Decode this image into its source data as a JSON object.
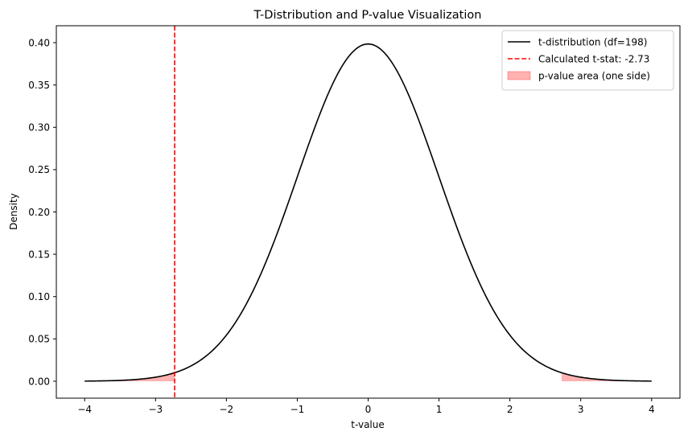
{
  "chart_data": {
    "type": "line",
    "title": "T-Distribution and P-value Visualization",
    "xlabel": "t-value",
    "ylabel": "Density",
    "xlim": [
      -4.4,
      4.4
    ],
    "ylim": [
      -0.02,
      0.42
    ],
    "xticks": [
      -4,
      -3,
      -2,
      -1,
      0,
      1,
      2,
      3,
      4
    ],
    "xtick_labels": [
      "−4",
      "−3",
      "−2",
      "−1",
      "0",
      "1",
      "2",
      "3",
      "4"
    ],
    "yticks": [
      0.0,
      0.05,
      0.1,
      0.15,
      0.2,
      0.25,
      0.3,
      0.35,
      0.4
    ],
    "ytick_labels": [
      "0.00",
      "0.05",
      "0.10",
      "0.15",
      "0.20",
      "0.25",
      "0.30",
      "0.35",
      "0.40"
    ],
    "grid": false,
    "legend_position": "top-right",
    "df": 198,
    "t_stat": -2.73,
    "x_range": [
      -4,
      4
    ],
    "series": [
      {
        "name": "t-distribution (df=198)",
        "kind": "line",
        "color": "#000000"
      },
      {
        "name": "Calculated t-stat: -2.73",
        "kind": "vline",
        "color": "#ff0000",
        "x": -2.73
      },
      {
        "name": "p-value area (one side)",
        "kind": "fill",
        "color": "#ff0000",
        "alpha": 0.3,
        "regions": [
          [
            -4,
            -2.73
          ],
          [
            2.73,
            4
          ]
        ]
      }
    ]
  }
}
